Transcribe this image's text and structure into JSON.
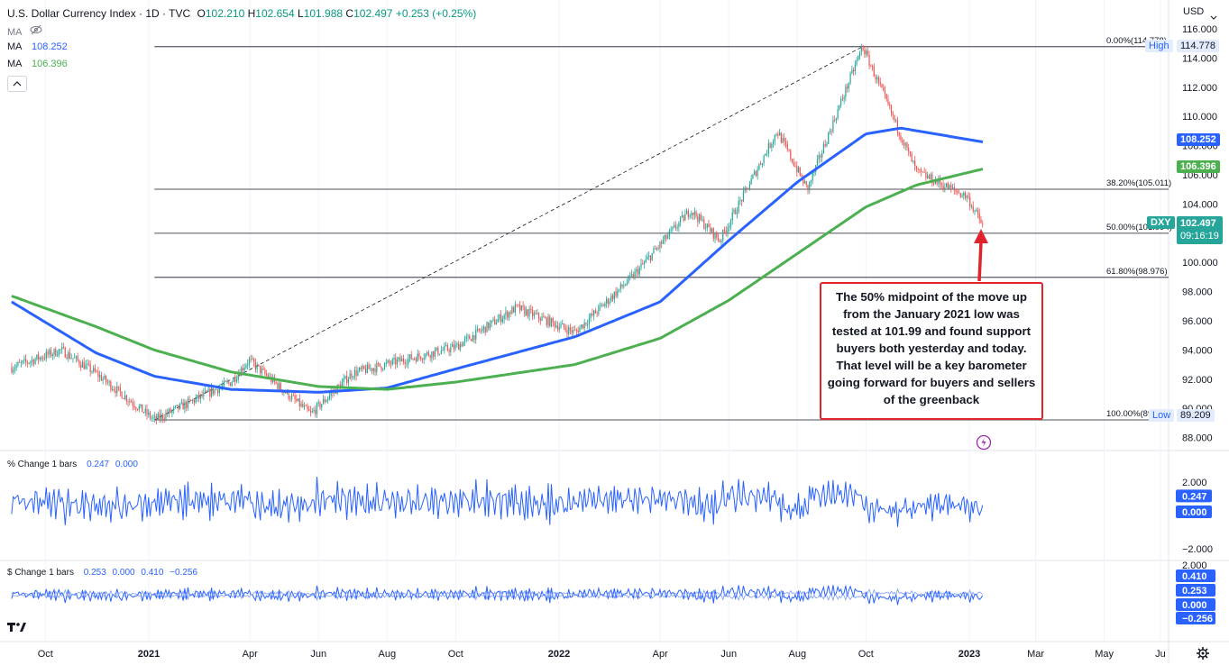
{
  "header": {
    "title": "U.S. Dollar Currency Index · 1D · TVC",
    "o_label": "O",
    "o_value": "102.210",
    "h_label": "H",
    "h_value": "102.654",
    "l_label": "L",
    "l_value": "101.988",
    "c_label": "C",
    "c_value": "102.497",
    "change": "+0.253 (+0.25%)",
    "ma1_label": "MA",
    "ma2_label": "MA",
    "ma2_value": "108.252",
    "ma3_label": "MA",
    "ma3_value": "106.396",
    "currency": "USD"
  },
  "callout_text": "The 50% midpoint of the move up from the January 2021 low was tested at 101.99 and found support buyers both yesterday and today. That level will be a key barometer going forward for buyers and sellers of the greenback",
  "pane2": {
    "title": "% Change 1 bars",
    "v1": "0.247",
    "v2": "0.000"
  },
  "pane3": {
    "title": "$ Change 1 bars",
    "v1": "0.253",
    "v2": "0.000",
    "v3": "0.410",
    "v4": "−0.256"
  },
  "price_labels": {
    "high_tag": "High",
    "high_value": "114.778",
    "ma_blue": "108.252",
    "ma_green": "106.396",
    "dxy_tag": "DXY",
    "dxy_value": "102.497",
    "countdown": "09:16:19",
    "low_tag": "Low",
    "low_value": "89.209"
  },
  "pane_scale_labels": {
    "p2": [
      "2.000",
      "0.247",
      "0.000",
      "−2.000"
    ],
    "p3": [
      "2.000",
      "0.410",
      "0.253",
      "0.000",
      "−0.256"
    ]
  },
  "colors": {
    "up": "#26a69a",
    "down": "#ef5350",
    "ma_blue": "#2962ff",
    "ma_green": "#4caf50",
    "arrow": "#e0242b",
    "pane_line": "#2962ff"
  },
  "chart_data": {
    "type": "line",
    "title": "U.S. Dollar Currency Index · 1D · TVC",
    "xlabel": "",
    "ylabel": "",
    "ylim": [
      86.9,
      116.6
    ],
    "x_tick_labels": [
      "Oct",
      "2021",
      "Apr",
      "Jun",
      "Aug",
      "Oct",
      "2022",
      "Apr",
      "Jun",
      "Aug",
      "Oct",
      "2023",
      "Mar",
      "May",
      "Ju"
    ],
    "y_tick_labels": [
      "116.000",
      "114.000",
      "112.000",
      "110.000",
      "108.000",
      "106.000",
      "104.000",
      "102.000",
      "100.000",
      "98.000",
      "96.000",
      "94.000",
      "92.000",
      "90.000",
      "88.000"
    ],
    "fib_levels": [
      {
        "label": "0.00%(114.778)",
        "value": 114.778
      },
      {
        "label": "38.20%(105.011)",
        "value": 105.011
      },
      {
        "label": "50.00%(101.994)",
        "value": 101.994
      },
      {
        "label": "61.80%(98.976)",
        "value": 98.976
      },
      {
        "label": "100.00%(89.209)",
        "value": 89.209
      }
    ],
    "series": [
      {
        "name": "DXY",
        "x": [
          "2020-09-01",
          "2020-10-15",
          "2020-11-15",
          "2021-01-06",
          "2021-03-15",
          "2021-03-31",
          "2021-05-25",
          "2021-07-01",
          "2021-08-20",
          "2021-10-01",
          "2021-11-24",
          "2022-01-15",
          "2022-03-07",
          "2022-04-28",
          "2022-05-24",
          "2022-07-14",
          "2022-08-10",
          "2022-09-28",
          "2022-11-15",
          "2022-12-30",
          "2023-01-13"
        ],
        "values": [
          92.8,
          94.0,
          92.4,
          89.2,
          91.8,
          93.3,
          89.6,
          92.4,
          93.4,
          94.2,
          96.9,
          95.2,
          99.0,
          103.6,
          101.5,
          109.0,
          105.0,
          114.8,
          106.2,
          104.5,
          102.5
        ]
      },
      {
        "name": "MA",
        "value": 108.252,
        "x": [
          "2020-09-01",
          "2020-11-15",
          "2021-01-06",
          "2021-03-15",
          "2021-06-01",
          "2021-08-01",
          "2021-10-01",
          "2022-01-15",
          "2022-04-01",
          "2022-06-01",
          "2022-08-01",
          "2022-10-01",
          "2022-11-01",
          "2023-01-13"
        ],
        "values": [
          97.3,
          93.8,
          92.2,
          91.3,
          91.1,
          91.4,
          92.7,
          94.9,
          97.3,
          101.5,
          105.5,
          108.8,
          109.2,
          108.25
        ]
      },
      {
        "name": "MA",
        "value": 106.396,
        "x": [
          "2020-09-01",
          "2020-11-15",
          "2021-01-06",
          "2021-03-15",
          "2021-06-01",
          "2021-08-01",
          "2021-10-01",
          "2022-01-15",
          "2022-04-01",
          "2022-06-01",
          "2022-08-01",
          "2022-10-01",
          "2022-11-15",
          "2023-01-13"
        ],
        "values": [
          97.7,
          95.6,
          94.0,
          92.5,
          91.5,
          91.3,
          91.8,
          93.0,
          94.8,
          97.4,
          100.6,
          103.8,
          105.3,
          106.4
        ]
      }
    ]
  }
}
